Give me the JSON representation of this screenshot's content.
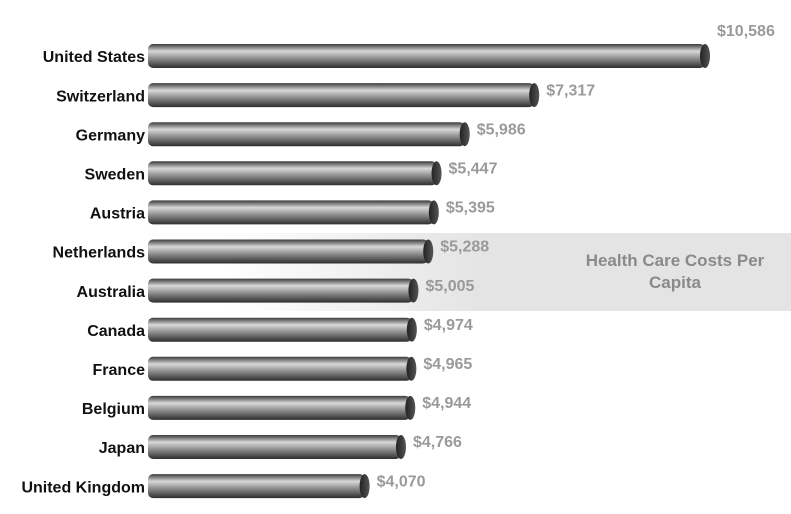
{
  "chart_data": {
    "type": "bar",
    "orientation": "horizontal",
    "categories": [
      "United States",
      "Switzerland",
      "Germany",
      "Sweden",
      "Austria",
      "Netherlands",
      "Australia",
      "Canada",
      "France",
      "Belgium",
      "Japan",
      "United Kingdom"
    ],
    "values": [
      10586,
      7317,
      5986,
      5447,
      5395,
      5288,
      5005,
      4974,
      4965,
      4944,
      4766,
      4070
    ],
    "value_labels": [
      "$10,586",
      "$7,317",
      "$5,986",
      "$5,447",
      "$5,395",
      "$5,288",
      "$5,005",
      "$4,974",
      "$4,965",
      "$4,944",
      "$4,766",
      "$4,070"
    ],
    "color": "#7a7a7a",
    "annotation": "Health Care Costs Per Capita"
  }
}
